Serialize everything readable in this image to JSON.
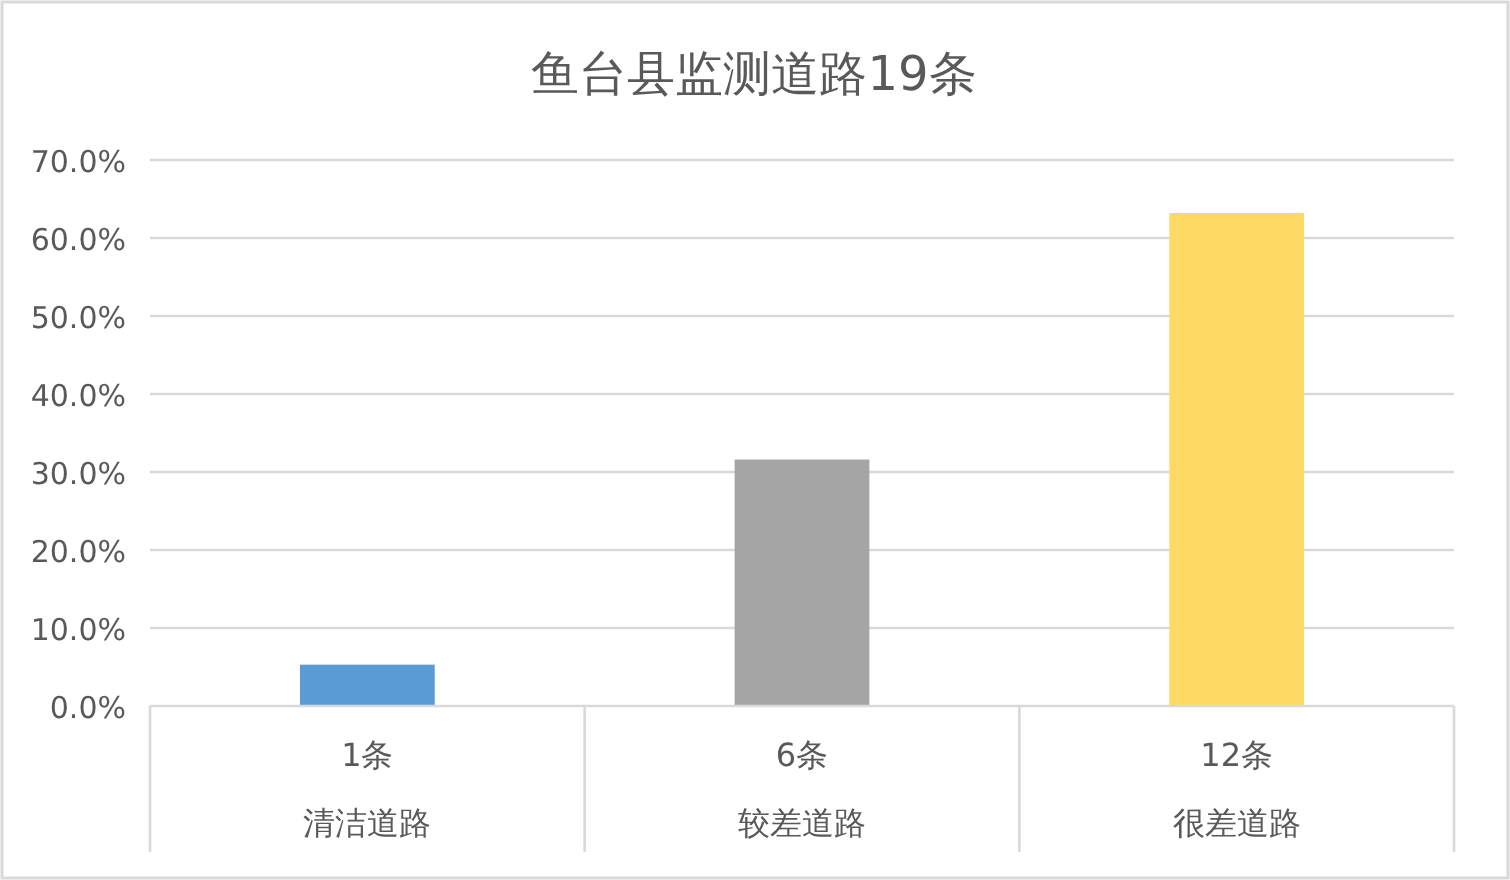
{
  "chart_data": {
    "type": "bar",
    "title": "鱼台县监测道路19条",
    "categories": [
      "清洁道路",
      "较差道路",
      "很差道路"
    ],
    "annotations": [
      "1条",
      "6条",
      "12条"
    ],
    "values": [
      5.3,
      31.6,
      63.2
    ],
    "colors": [
      "#5b9bd5",
      "#a5a5a5",
      "#ffd966"
    ],
    "ylim": [
      0,
      70
    ],
    "yticks": [
      {
        "value": 0,
        "label": "0.0%"
      },
      {
        "value": 10,
        "label": "10.0%"
      },
      {
        "value": 20,
        "label": "20.0%"
      },
      {
        "value": 30,
        "label": "30.0%"
      },
      {
        "value": 40,
        "label": "40.0%"
      },
      {
        "value": 50,
        "label": "50.0%"
      },
      {
        "value": 60,
        "label": "60.0%"
      },
      {
        "value": 70,
        "label": "70.0%"
      }
    ],
    "grid": "y"
  }
}
